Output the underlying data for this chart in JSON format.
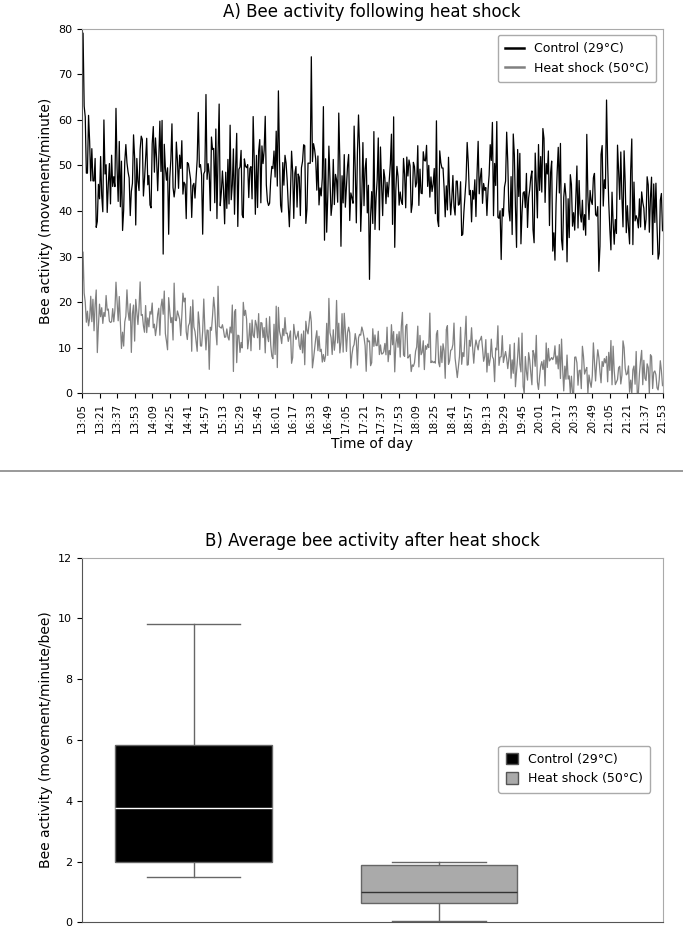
{
  "panel_a_title": "A) Bee activity following heat shock",
  "panel_b_title": "B) Average bee activity after heat shock",
  "panel_a_ylabel": "Bee activity (movement/minute)",
  "panel_b_ylabel": "Bee activity (movement/minute/bee)",
  "panel_a_xlabel": "Time of day",
  "panel_a_ylim": [
    0,
    80
  ],
  "panel_b_ylim": [
    0,
    12
  ],
  "panel_a_yticks": [
    0,
    10,
    20,
    30,
    40,
    50,
    60,
    70,
    80
  ],
  "panel_b_yticks": [
    0,
    2,
    4,
    6,
    8,
    10,
    12
  ],
  "control_color": "#000000",
  "heat_shock_color_line": "#808080",
  "heat_shock_color_box": "#999999",
  "legend_a_labels": [
    "Control (29°C)",
    "Heat shock (50°C)"
  ],
  "legend_b_labels": [
    "Control (29°C)",
    "Heat shock (50°C)"
  ],
  "time_labels": [
    "13:05",
    "13:21",
    "13:37",
    "13:53",
    "14:09",
    "14:25",
    "14:41",
    "14:57",
    "15:13",
    "15:29",
    "15:45",
    "16:01",
    "16:17",
    "16:33",
    "16:49",
    "17:05",
    "17:21",
    "17:37",
    "17:53",
    "18:09",
    "18:25",
    "18:41",
    "18:57",
    "19:13",
    "19:29",
    "19:45",
    "20:01",
    "20:17",
    "20:33",
    "20:49",
    "21:05",
    "21:21",
    "21:37",
    "21:53"
  ],
  "control_box": {
    "whislo": 1.5,
    "q1": 2.0,
    "med": 3.75,
    "q3": 5.85,
    "whishi": 9.8
  },
  "heat_box": {
    "whislo": 0.05,
    "q1": 0.65,
    "med": 1.0,
    "q3": 1.9,
    "whishi": 2.0
  },
  "figsize": [
    6.83,
    9.51
  ],
  "dpi": 100
}
